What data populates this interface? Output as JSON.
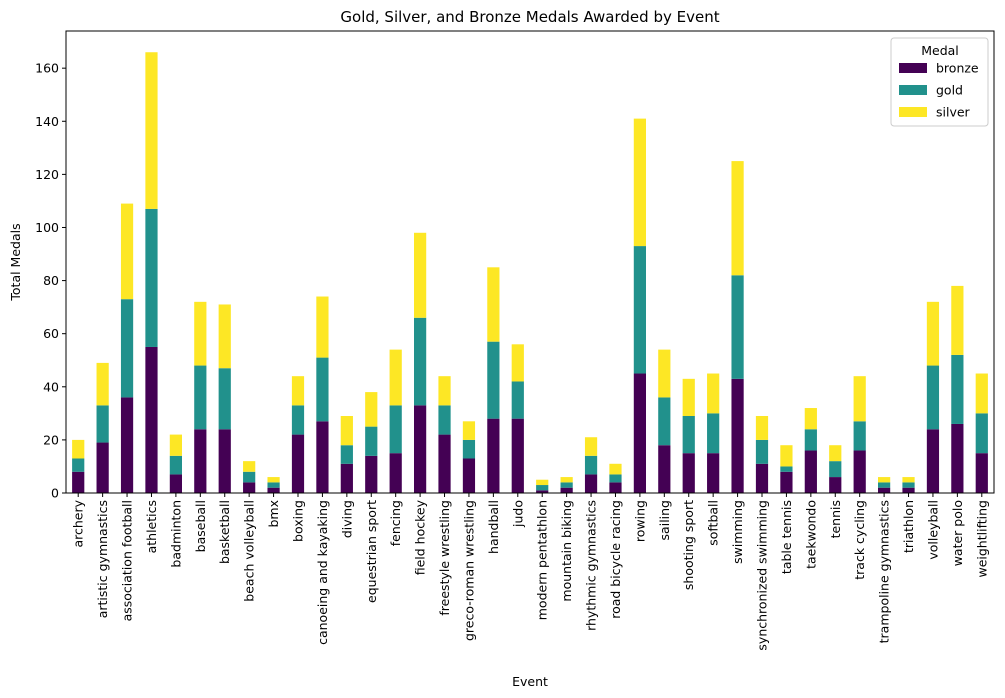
{
  "chart_data": {
    "type": "bar",
    "stacked": true,
    "title": "Gold, Silver, and Bronze Medals Awarded by Event",
    "xlabel": "Event",
    "ylabel": "Total Medals",
    "ylim": [
      0,
      174
    ],
    "yticks": [
      0,
      20,
      40,
      60,
      80,
      100,
      120,
      140,
      160
    ],
    "grid": false,
    "legend": {
      "title": "Medal",
      "placement": "top-right"
    },
    "categories": [
      "archery",
      "artistic gymnastics",
      "association football",
      "athletics",
      "badminton",
      "baseball",
      "basketball",
      "beach volleyball",
      "bmx",
      "boxing",
      "canoeing and kayaking",
      "diving",
      "equestrian sport",
      "fencing",
      "field hockey",
      "freestyle wrestling",
      "greco-roman wrestling",
      "handball",
      "judo",
      "modern pentathlon",
      "mountain biking",
      "rhythmic gymnastics",
      "road bicycle racing",
      "rowing",
      "sailing",
      "shooting sport",
      "softball",
      "swimming",
      "synchronized swimming",
      "table tennis",
      "taekwondo",
      "tennis",
      "track cycling",
      "trampoline gymnastics",
      "triathlon",
      "volleyball",
      "water polo",
      "weightlifting"
    ],
    "series": [
      {
        "name": "bronze",
        "color": "#440154",
        "values": [
          8,
          19,
          36,
          55,
          7,
          24,
          24,
          4,
          2,
          22,
          27,
          11,
          14,
          15,
          33,
          22,
          13,
          28,
          28,
          1,
          2,
          7,
          4,
          45,
          18,
          15,
          15,
          43,
          11,
          8,
          16,
          6,
          16,
          2,
          2,
          24,
          26,
          15
        ]
      },
      {
        "name": "gold",
        "color": "#21918c",
        "values": [
          5,
          14,
          37,
          52,
          7,
          24,
          23,
          4,
          2,
          11,
          24,
          7,
          11,
          18,
          33,
          11,
          7,
          29,
          14,
          2,
          2,
          7,
          3,
          48,
          18,
          14,
          15,
          39,
          9,
          2,
          8,
          6,
          11,
          2,
          2,
          24,
          26,
          15
        ]
      },
      {
        "name": "silver",
        "color": "#fde725",
        "values": [
          7,
          16,
          36,
          59,
          8,
          24,
          24,
          4,
          2,
          11,
          23,
          11,
          13,
          21,
          32,
          11,
          7,
          28,
          14,
          2,
          2,
          7,
          4,
          48,
          18,
          14,
          15,
          43,
          9,
          8,
          8,
          6,
          17,
          2,
          2,
          24,
          26,
          15
        ]
      }
    ]
  }
}
